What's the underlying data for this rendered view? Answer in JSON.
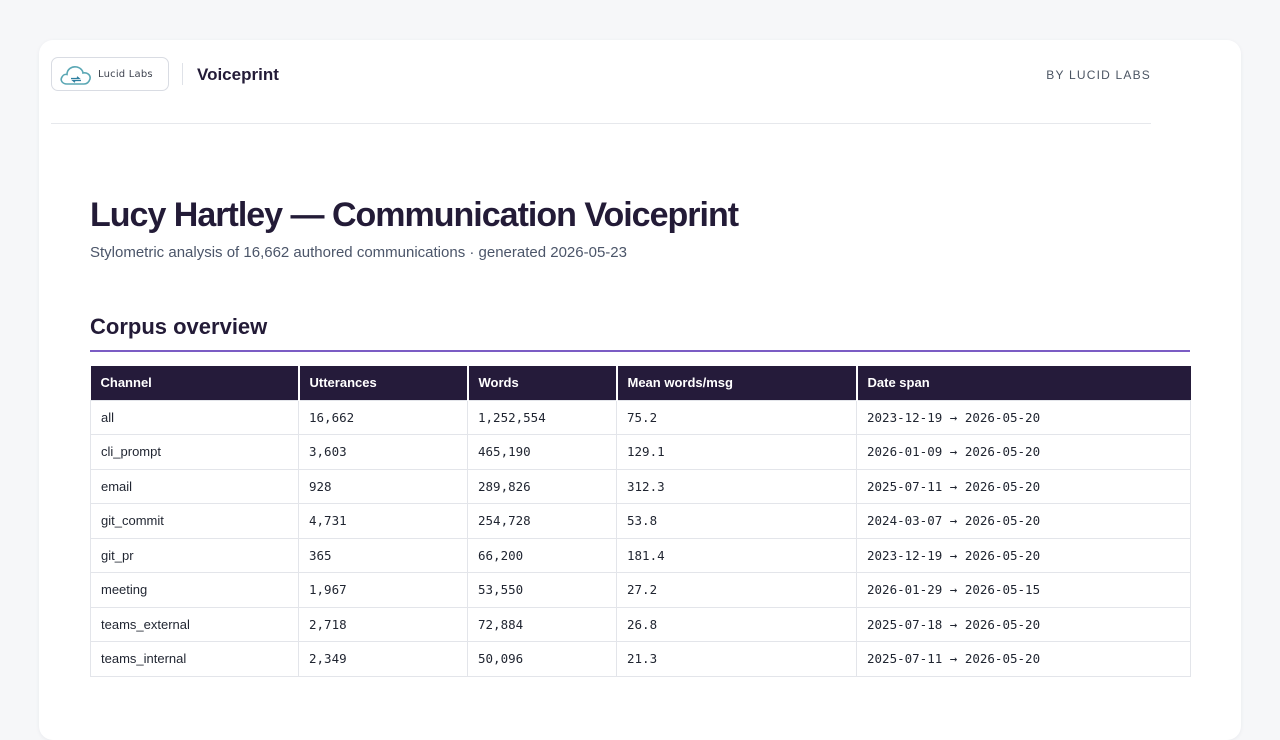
{
  "brand": {
    "logo_text": "Lucid Labs",
    "product": "Voiceprint",
    "byline": "BY LUCID LABS",
    "logo_icon": "cloud-sync-icon",
    "accent_color": "#7b5cc4",
    "header_color": "#251b3a"
  },
  "report": {
    "title": "Lucy Hartley — Communication Voiceprint",
    "subtitle": "Stylometric analysis of 16,662 authored communications · generated 2026-05-23"
  },
  "corpus": {
    "section_title": "Corpus overview",
    "columns": [
      "Channel",
      "Utterances",
      "Words",
      "Mean words/msg",
      "Date span"
    ],
    "rows": [
      {
        "channel": "all",
        "utterances": "16,662",
        "words": "1,252,554",
        "mean": "75.2",
        "span": "2023-12-19 → 2026-05-20"
      },
      {
        "channel": "cli_prompt",
        "utterances": "3,603",
        "words": "465,190",
        "mean": "129.1",
        "span": "2026-01-09 → 2026-05-20"
      },
      {
        "channel": "email",
        "utterances": "928",
        "words": "289,826",
        "mean": "312.3",
        "span": "2025-07-11 → 2026-05-20"
      },
      {
        "channel": "git_commit",
        "utterances": "4,731",
        "words": "254,728",
        "mean": "53.8",
        "span": "2024-03-07 → 2026-05-20"
      },
      {
        "channel": "git_pr",
        "utterances": "365",
        "words": "66,200",
        "mean": "181.4",
        "span": "2023-12-19 → 2026-05-20"
      },
      {
        "channel": "meeting",
        "utterances": "1,967",
        "words": "53,550",
        "mean": "27.2",
        "span": "2026-01-29 → 2026-05-15"
      },
      {
        "channel": "teams_external",
        "utterances": "2,718",
        "words": "72,884",
        "mean": "26.8",
        "span": "2025-07-18 → 2026-05-20"
      },
      {
        "channel": "teams_internal",
        "utterances": "2,349",
        "words": "50,096",
        "mean": "21.3",
        "span": "2025-07-11 → 2026-05-20"
      }
    ]
  }
}
